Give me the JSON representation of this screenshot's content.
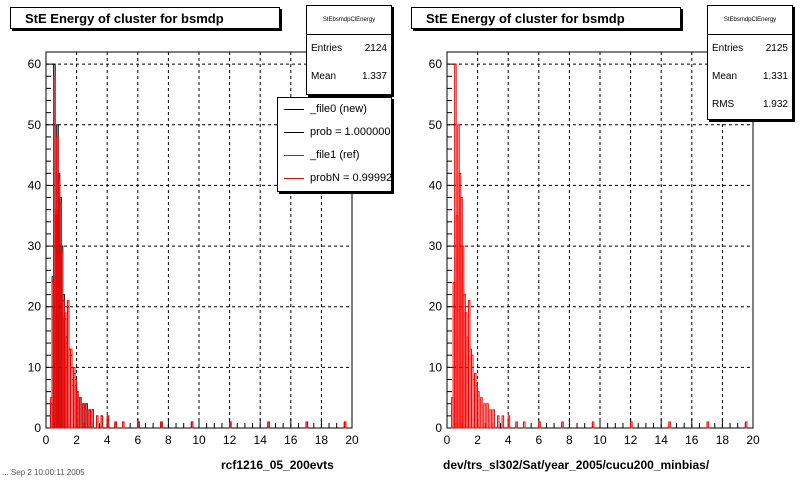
{
  "footer": "... Sep  2 10:00:11 2005",
  "colors": {
    "new": "#000000",
    "ref": "#ff0000",
    "grid": "#000000"
  },
  "panels": [
    {
      "title": "StE Energy of cluster for bsmdp",
      "stats": {
        "name": "StEbsmdpClEnergy",
        "rows": [
          {
            "label": "Entries",
            "value": "2124"
          },
          {
            "label": "Mean",
            "value": "1.337"
          }
        ]
      },
      "legend": [
        {
          "label": "_file0 (new)",
          "color": "#000000"
        },
        {
          "label": "prob = 1.000000",
          "color": "#000000"
        },
        {
          "label": "_file1 (ref)",
          "color": "#ff0000"
        },
        {
          "label": "probN = 0.999920",
          "color": "#ff0000"
        }
      ],
      "xtitle": "rcf1216_05_200evts"
    },
    {
      "title": "StE Energy of cluster for bsmdp",
      "stats": {
        "name": "StEbsmdpClEnergy",
        "rows": [
          {
            "label": "Entries",
            "value": "2125"
          },
          {
            "label": "Mean",
            "value": "1.331"
          },
          {
            "label": "RMS",
            "value": "1.932"
          }
        ]
      },
      "legend": [],
      "xtitle": "dev/trs_sl302/Sat/year_2005/cucu200_minbias/"
    }
  ],
  "chart_data": [
    {
      "type": "bar",
      "title": "StE Energy of cluster for bsmdp",
      "xlabel": "rcf1216_05_200evts",
      "ylabel": "",
      "xlim": [
        0,
        20
      ],
      "ylim": [
        0,
        62
      ],
      "grid": true,
      "legend_position": "top-right",
      "xticks": [
        0,
        2,
        4,
        6,
        8,
        10,
        12,
        14,
        16,
        18,
        20
      ],
      "yticks": [
        0,
        10,
        20,
        30,
        40,
        50,
        60
      ],
      "bin_width": 0.1,
      "series": [
        {
          "name": "_file0 (new)",
          "color": "#000000",
          "x": [
            0.3,
            0.4,
            0.5,
            0.6,
            0.7,
            0.8,
            0.9,
            1.0,
            1.1,
            1.2,
            1.3,
            1.4,
            1.5,
            1.6,
            1.7,
            1.8,
            1.9,
            2.0,
            2.2,
            2.4,
            2.6,
            2.8,
            3.0,
            3.3,
            3.6,
            4.0,
            4.5,
            5.0,
            6.0,
            7.5,
            9.5,
            12.0,
            14.5,
            17.0,
            19.5
          ],
          "values": [
            4,
            25,
            60,
            35,
            50,
            42,
            38,
            30,
            22,
            18,
            15,
            20,
            13,
            12,
            8,
            9,
            7,
            6,
            5,
            4,
            4,
            3,
            3,
            2,
            2,
            2,
            1,
            1,
            1,
            1,
            1,
            1,
            1,
            1,
            1
          ]
        },
        {
          "name": "_file1 (ref)",
          "color": "#ff0000",
          "x": [
            0.3,
            0.4,
            0.5,
            0.6,
            0.7,
            0.8,
            0.9,
            1.0,
            1.1,
            1.2,
            1.3,
            1.4,
            1.5,
            1.6,
            1.7,
            1.8,
            1.9,
            2.0,
            2.2,
            2.4,
            2.6,
            2.8,
            3.0,
            3.3,
            3.6,
            4.0,
            4.5,
            5.0,
            6.0,
            7.5,
            9.5,
            12.0,
            14.5,
            17.0,
            19.5
          ],
          "values": [
            5,
            24,
            58,
            36,
            48,
            41,
            37,
            29,
            21,
            19,
            14,
            21,
            12,
            13,
            7,
            10,
            8,
            6,
            5,
            4,
            3,
            3,
            3,
            2,
            2,
            2,
            1,
            1,
            1,
            1,
            1,
            1,
            1,
            1,
            1
          ]
        }
      ]
    },
    {
      "type": "bar",
      "title": "StE Energy of cluster for bsmdp",
      "xlabel": "dev/trs_sl302/Sat/year_2005/cucu200_minbias/",
      "ylabel": "",
      "xlim": [
        0,
        20
      ],
      "ylim": [
        0,
        62
      ],
      "grid": true,
      "xticks": [
        0,
        2,
        4,
        6,
        8,
        10,
        12,
        14,
        16,
        18,
        20
      ],
      "yticks": [
        0,
        10,
        20,
        30,
        40,
        50,
        60
      ],
      "bin_width": 0.1,
      "series": [
        {
          "name": "",
          "color": "#ff0000",
          "x": [
            0.3,
            0.4,
            0.5,
            0.6,
            0.7,
            0.8,
            0.9,
            1.0,
            1.1,
            1.2,
            1.3,
            1.4,
            1.5,
            1.6,
            1.7,
            1.8,
            1.9,
            2.0,
            2.2,
            2.4,
            2.6,
            2.8,
            3.0,
            3.3,
            3.6,
            4.0,
            4.5,
            5.0,
            6.0,
            7.5,
            9.5,
            12.0,
            14.5,
            17.0,
            19.5
          ],
          "values": [
            5,
            24,
            60,
            35,
            50,
            42,
            38,
            30,
            22,
            19,
            15,
            21,
            13,
            12,
            8,
            9,
            7,
            6,
            5,
            4,
            4,
            3,
            3,
            2,
            2,
            2,
            1,
            1,
            1,
            1,
            1,
            1,
            1,
            1,
            1
          ]
        }
      ]
    }
  ]
}
